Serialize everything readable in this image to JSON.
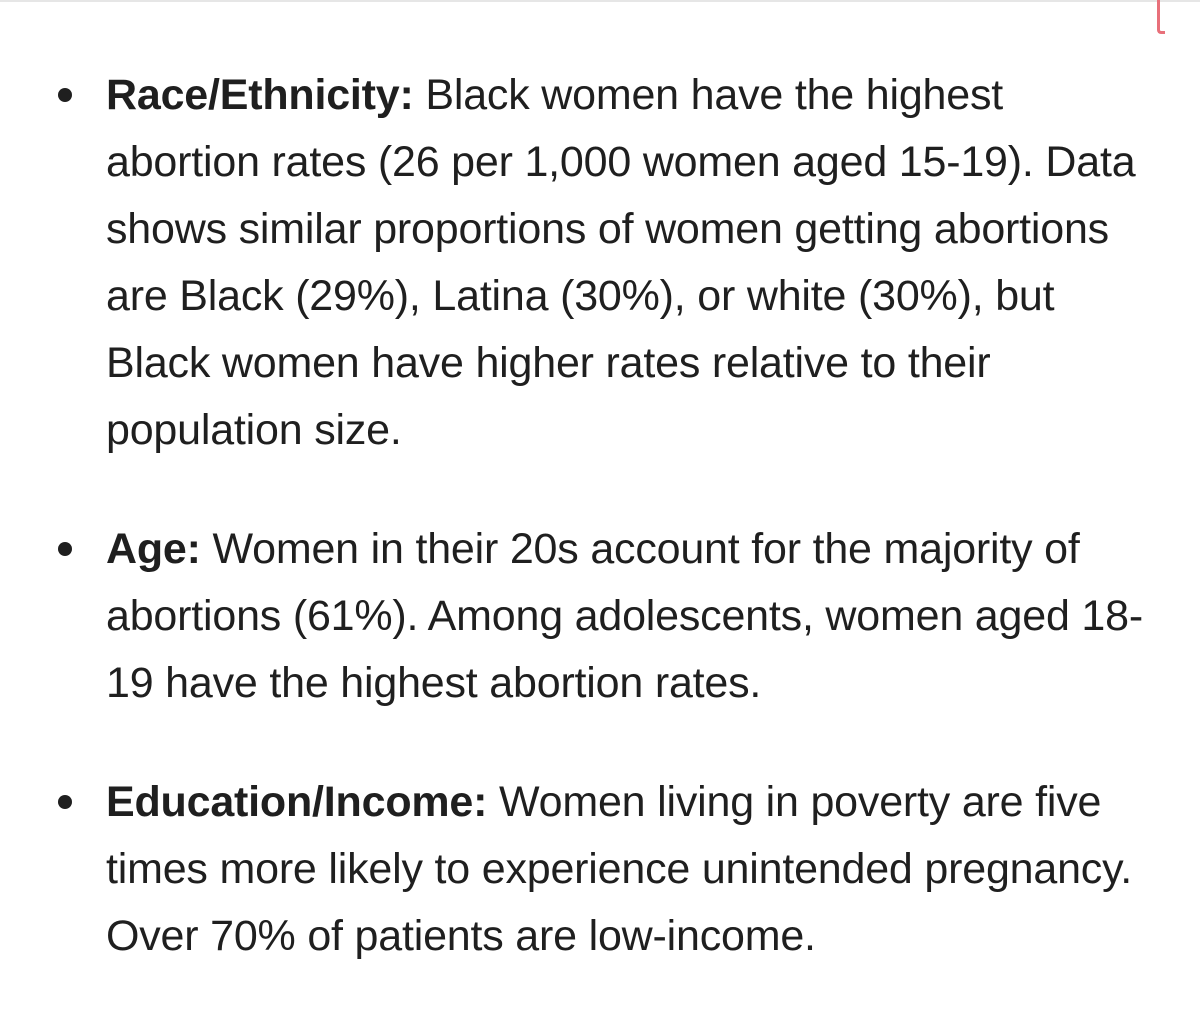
{
  "items": [
    {
      "label": "Race/Ethnicity:",
      "text": " Black women have the highest abortion rates (26 per 1,000 women aged 15-19). Data shows similar proportions of women getting abortions are Black (29%), Latina (30%), or white (30%), but Black women have higher rates relative to their population size."
    },
    {
      "label": "Age:",
      "text": " Women in their 20s account for the majority of abortions (61%). Among adolescents, women aged 18-19 have the highest abortion rates."
    },
    {
      "label": "Education/Income:",
      "text": " Women living in poverty are five times more likely to experience unintended pregnancy. Over 70% of patients are low-income."
    }
  ],
  "colors": {
    "text": "#1f1f1f",
    "accent_mark": "#e8707a",
    "divider": "#e6e6e6"
  }
}
